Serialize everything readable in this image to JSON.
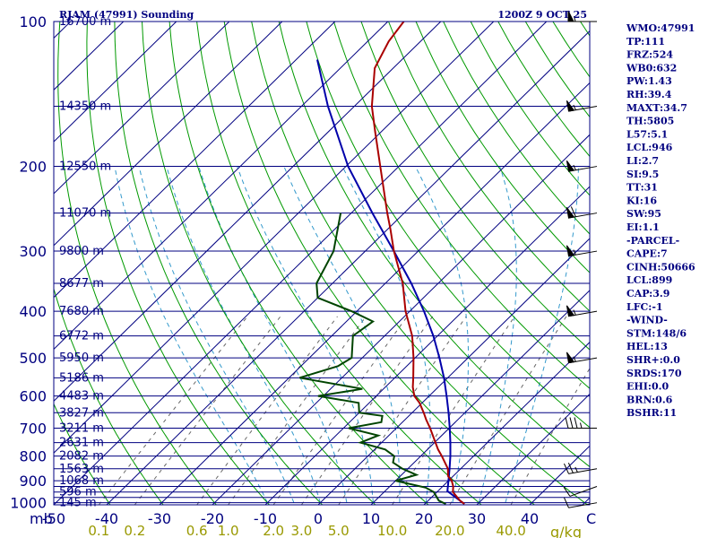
{
  "header": {
    "station": "RJAM (47991) Sounding",
    "time": "1200Z  9 OCT 25"
  },
  "colors": {
    "frame": "#000080",
    "isobar": "#000080",
    "isotherm": "#000080",
    "dry_adiabat": "#009900",
    "moist_adiabat": "#3399cc",
    "mixing_ratio": "#666666",
    "temperature": "#aa0000",
    "dewpoint": "#004400",
    "parcel": "#0000aa",
    "tick_label": "#000080",
    "mixing_label": "#999900",
    "index_text": "#000080"
  },
  "chart_data": {
    "type": "skewt",
    "pressure_axis_label": "mb",
    "temperature_unit_label": "C",
    "mixing_ratio_unit_label": "g/kg",
    "pressure_ticks": [
      "100",
      "200",
      "300",
      "400",
      "500",
      "600",
      "700",
      "800",
      "900",
      "1000"
    ],
    "isobars": [
      100,
      150,
      200,
      250,
      300,
      350,
      400,
      450,
      500,
      550,
      600,
      650,
      700,
      750,
      800,
      850,
      900,
      925,
      950,
      975,
      1000
    ],
    "height_labels": [
      {
        "p": 100,
        "label": "16700 m"
      },
      {
        "p": 150,
        "label": "14350 m"
      },
      {
        "p": 200,
        "label": "12550 m"
      },
      {
        "p": 250,
        "label": "11070 m"
      },
      {
        "p": 300,
        "label": "9800 m"
      },
      {
        "p": 350,
        "label": "8677 m"
      },
      {
        "p": 400,
        "label": "7680 m"
      },
      {
        "p": 450,
        "label": "6772 m"
      },
      {
        "p": 500,
        "label": "5950 m"
      },
      {
        "p": 550,
        "label": "5186 m"
      },
      {
        "p": 600,
        "label": "4483 m"
      },
      {
        "p": 650,
        "label": "3827 m"
      },
      {
        "p": 700,
        "label": "3211 m"
      },
      {
        "p": 750,
        "label": "2631 m"
      },
      {
        "p": 800,
        "label": "2082 m"
      },
      {
        "p": 850,
        "label": "1563 m"
      },
      {
        "p": 900,
        "label": "1068 m"
      },
      {
        "p": 950,
        "label": "596 m"
      },
      {
        "p": 1000,
        "label": "145 m"
      }
    ],
    "temp_ticks": [
      "-50",
      "-40",
      "-30",
      "-20",
      "-10",
      "0",
      "10",
      "20",
      "30",
      "40"
    ],
    "mixing_ratio_ticks": [
      "0.1",
      "0.2",
      "0.6",
      "1.0",
      "2.0",
      "3.0",
      "5.0",
      "10.0",
      "20.0",
      "40.0"
    ],
    "temperature_profile": [
      {
        "p": 1006,
        "t": 27.5
      },
      {
        "p": 990,
        "t": 26.0
      },
      {
        "p": 950,
        "t": 23.0
      },
      {
        "p": 925,
        "t": 22.0
      },
      {
        "p": 900,
        "t": 20.6
      },
      {
        "p": 880,
        "t": 19.0
      },
      {
        "p": 850,
        "t": 17.6
      },
      {
        "p": 800,
        "t": 14.0
      },
      {
        "p": 775,
        "t": 12.0
      },
      {
        "p": 750,
        "t": 10.2
      },
      {
        "p": 700,
        "t": 6.4
      },
      {
        "p": 672,
        "t": 4.0
      },
      {
        "p": 650,
        "t": 2.2
      },
      {
        "p": 620,
        "t": -0.5
      },
      {
        "p": 600,
        "t": -2.8
      },
      {
        "p": 575,
        "t": -4.8
      },
      {
        "p": 550,
        "t": -6.5
      },
      {
        "p": 500,
        "t": -10.3
      },
      {
        "p": 450,
        "t": -14.8
      },
      {
        "p": 400,
        "t": -20.8
      },
      {
        "p": 350,
        "t": -26.7
      },
      {
        "p": 300,
        "t": -34.6
      },
      {
        "p": 270,
        "t": -39.5
      },
      {
        "p": 250,
        "t": -43.2
      },
      {
        "p": 200,
        "t": -53.5
      },
      {
        "p": 170,
        "t": -61.0
      },
      {
        "p": 150,
        "t": -66.7
      },
      {
        "p": 125,
        "t": -73.5
      },
      {
        "p": 110,
        "t": -76.0
      },
      {
        "p": 100,
        "t": -77.0
      }
    ],
    "dewpoint_profile": [
      {
        "p": 1006,
        "td": 24.0
      },
      {
        "p": 990,
        "td": 22.0
      },
      {
        "p": 950,
        "td": 19.4
      },
      {
        "p": 930,
        "td": 17.0
      },
      {
        "p": 900,
        "td": 10.0
      },
      {
        "p": 875,
        "td": 12.8
      },
      {
        "p": 850,
        "td": 9.0
      },
      {
        "p": 825,
        "td": 6.0
      },
      {
        "p": 800,
        "td": 5.0
      },
      {
        "p": 775,
        "td": 2.0
      },
      {
        "p": 750,
        "td": -4.0
      },
      {
        "p": 725,
        "td": -2.0
      },
      {
        "p": 700,
        "td": -9.0
      },
      {
        "p": 680,
        "td": -4.0
      },
      {
        "p": 660,
        "td": -5.0
      },
      {
        "p": 650,
        "td": -10.0
      },
      {
        "p": 620,
        "td": -12.0
      },
      {
        "p": 600,
        "td": -21.0
      },
      {
        "p": 580,
        "td": -14.0
      },
      {
        "p": 550,
        "td": -28.0
      },
      {
        "p": 520,
        "td": -23.0
      },
      {
        "p": 500,
        "td": -22.0
      },
      {
        "p": 450,
        "td": -26.0
      },
      {
        "p": 420,
        "td": -25.0
      },
      {
        "p": 400,
        "td": -31.0
      },
      {
        "p": 375,
        "td": -40.0
      },
      {
        "p": 350,
        "td": -43.0
      },
      {
        "p": 300,
        "td": -46.0
      },
      {
        "p": 250,
        "td": -52.0
      }
    ],
    "parcel_profile": [
      {
        "p": 1006,
        "t": 27.5
      },
      {
        "p": 946,
        "t": 21.8
      },
      {
        "p": 900,
        "t": 20.0
      },
      {
        "p": 850,
        "t": 17.9
      },
      {
        "p": 800,
        "t": 15.6
      },
      {
        "p": 750,
        "t": 13.0
      },
      {
        "p": 700,
        "t": 10.1
      },
      {
        "p": 650,
        "t": 6.9
      },
      {
        "p": 600,
        "t": 3.3
      },
      {
        "p": 550,
        "t": -0.7
      },
      {
        "p": 500,
        "t": -5.4
      },
      {
        "p": 450,
        "t": -10.8
      },
      {
        "p": 400,
        "t": -17.3
      },
      {
        "p": 350,
        "t": -25.1
      },
      {
        "p": 300,
        "t": -34.6
      },
      {
        "p": 250,
        "t": -46.0
      },
      {
        "p": 200,
        "t": -59.6
      },
      {
        "p": 150,
        "t": -75.0
      },
      {
        "p": 120,
        "t": -86.0
      }
    ],
    "wind_barbs": [
      {
        "p": 1000,
        "dir": 260,
        "spd": 10
      },
      {
        "p": 925,
        "dir": 250,
        "spd": 10
      },
      {
        "p": 850,
        "dir": 260,
        "spd": 25
      },
      {
        "p": 700,
        "dir": 270,
        "spd": 35
      },
      {
        "p": 500,
        "dir": 260,
        "spd": 55
      },
      {
        "p": 400,
        "dir": 260,
        "spd": 55
      },
      {
        "p": 300,
        "dir": 260,
        "spd": 55
      },
      {
        "p": 250,
        "dir": 260,
        "spd": 60
      },
      {
        "p": 200,
        "dir": 260,
        "spd": 55
      },
      {
        "p": 150,
        "dir": 260,
        "spd": 55
      },
      {
        "p": 100,
        "dir": 270,
        "spd": 55
      }
    ]
  },
  "indices": [
    "WMO:47991",
    "TP:111",
    "FRZ:524",
    "WB0:632",
    "PW:1.43",
    "RH:39.4",
    "MAXT:34.7",
    "TH:5805",
    "L57:5.1",
    "LCL:946",
    "LI:2.7",
    "SI:9.5",
    "TT:31",
    "KI:16",
    "SW:95",
    "EI:1.1",
    "-PARCEL-",
    "CAPE:7",
    "CINH:50666",
    "LCL:899",
    "CAP:3.9",
    "LFC:-1",
    "-WIND-",
    "STM:148/6",
    "HEL:13",
    "SHR+:0.0",
    "SRDS:170",
    "EHI:0.0",
    "BRN:0.6",
    "BSHR:11"
  ]
}
